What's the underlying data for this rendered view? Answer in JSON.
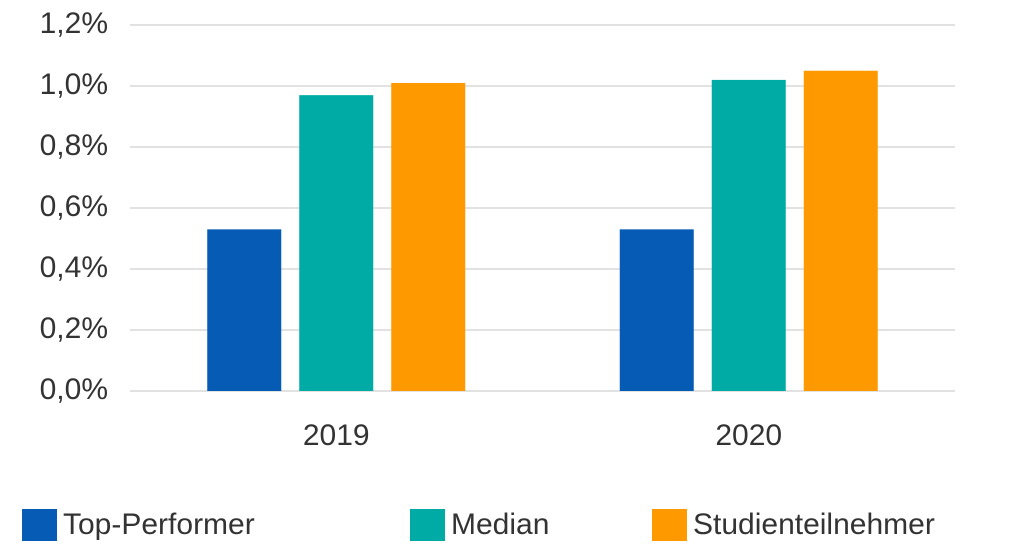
{
  "chart_data": {
    "type": "bar",
    "categories": [
      "2019",
      "2020"
    ],
    "series": [
      {
        "name": "Top-Performer",
        "color": "#065bb5",
        "values": [
          0.53,
          0.53
        ]
      },
      {
        "name": "Median",
        "color": "#00aba5",
        "values": [
          0.97,
          1.02
        ]
      },
      {
        "name": "Studienteilnehmer",
        "color": "#ff9900",
        "values": [
          1.01,
          1.05
        ]
      }
    ],
    "ylim": [
      0,
      1.2
    ],
    "yticks": [
      {
        "value": 0,
        "label": "0,0%"
      },
      {
        "value": 0.2,
        "label": "0,2%"
      },
      {
        "value": 0.4,
        "label": "0,4%"
      },
      {
        "value": 0.6,
        "label": "0,6%"
      },
      {
        "value": 0.8,
        "label": "0,8%"
      },
      {
        "value": 1.0,
        "label": "1,0%"
      },
      {
        "value": 1.2,
        "label": "1,2%"
      }
    ],
    "grid": true,
    "legend": "bottom"
  }
}
